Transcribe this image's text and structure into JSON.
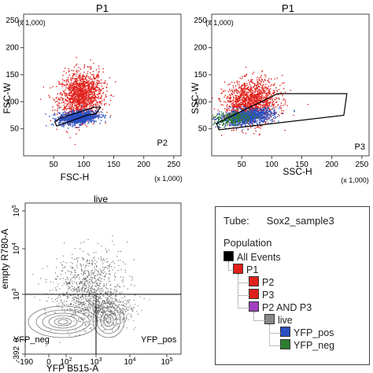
{
  "chart_data": [
    {
      "type": "scatter",
      "title": "P1",
      "xlabel": "FSC-H",
      "ylabel": "FSC-W",
      "x_unit": "(x 1,000)",
      "y_unit": "(x 1,000)",
      "xlim": [
        0,
        262
      ],
      "ylim": [
        0,
        262
      ],
      "xticks": [
        50,
        100,
        150,
        200,
        250
      ],
      "yticks": [
        50,
        100,
        150,
        200,
        250
      ],
      "gate_label": "P2",
      "gate": [
        [
          55,
          55
        ],
        [
          105,
          75
        ],
        [
          120,
          78
        ],
        [
          128,
          90
        ],
        [
          118,
          90
        ],
        [
          62,
          70
        ],
        [
          52,
          63
        ]
      ],
      "series": [
        {
          "color": "#e0201a",
          "center": [
            95,
            112
          ],
          "spread": [
            18,
            22
          ],
          "count": 1400
        },
        {
          "color": "#2a4fc0",
          "center": [
            90,
            72
          ],
          "spread": [
            16,
            6
          ],
          "count": 1100
        }
      ]
    },
    {
      "type": "scatter",
      "title": "P1",
      "xlabel": "SSC-H",
      "ylabel": "SSC-W",
      "x_unit": "(x 1,000)",
      "y_unit": "(x 1,000)",
      "xlim": [
        0,
        262
      ],
      "ylim": [
        0,
        262
      ],
      "xticks": [
        50,
        100,
        150,
        200,
        250
      ],
      "yticks": [
        50,
        100,
        150,
        200,
        250
      ],
      "gate_label": "P3",
      "gate": [
        [
          8,
          60
        ],
        [
          12,
          48
        ],
        [
          220,
          75
        ],
        [
          225,
          115
        ],
        [
          110,
          115
        ]
      ],
      "series": [
        {
          "color": "#e0201a",
          "center": [
            65,
            100
          ],
          "spread": [
            22,
            20
          ],
          "count": 1400
        },
        {
          "color": "#2a4fc0",
          "center": [
            58,
            73
          ],
          "spread": [
            22,
            7
          ],
          "count": 1100
        },
        {
          "color": "#2e7d32",
          "center": [
            35,
            70
          ],
          "spread": [
            18,
            6
          ],
          "count": 250
        }
      ]
    },
    {
      "type": "contour",
      "title": "live",
      "xlabel": "YFP B515-A",
      "ylabel": "empty R780-A",
      "xticks": [
        "-190",
        "0",
        "10^2",
        "10^3",
        "10^4",
        "10^5"
      ],
      "yticks": [
        "-392",
        "0",
        "10^3",
        "10^4",
        "10^5"
      ],
      "quadrant_labels": [
        "YFP_neg",
        "YFP_pos"
      ]
    }
  ],
  "hierarchy": {
    "tube_label": "Tube:",
    "tube_value": "Sox2_sample3",
    "population_label": "Population",
    "nodes": [
      {
        "label": "All Events",
        "color": "#000000",
        "level": 0
      },
      {
        "label": "P1",
        "color": "#e0201a",
        "level": 1
      },
      {
        "label": "P2",
        "color": "#e0201a",
        "level": 2
      },
      {
        "label": "P3",
        "color": "#e0201a",
        "level": 2
      },
      {
        "label": "P2 AND P3",
        "color": "#a040c0",
        "level": 2
      },
      {
        "label": "live",
        "color": "#888888",
        "level": 3
      },
      {
        "label": "YFP_pos",
        "color": "#2a4fc0",
        "level": 4
      },
      {
        "label": "YFP_neg",
        "color": "#2e7d32",
        "level": 4
      }
    ]
  }
}
